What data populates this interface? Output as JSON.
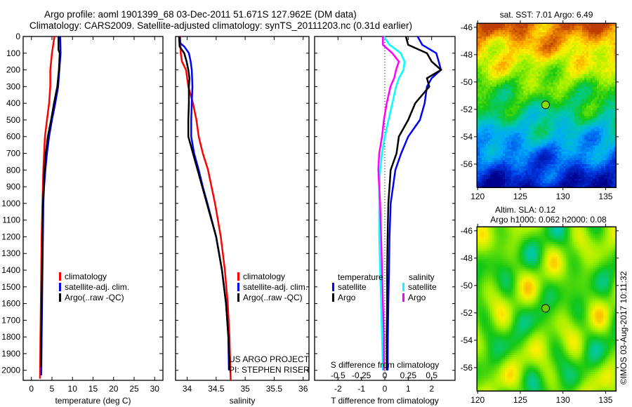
{
  "header": {
    "line1": "Argo profile: aoml 1901399_68 03-Dec-2011 51.671S 127.962E (DM data)",
    "line2": "Climatology: CARS2009. Satellite-adjusted climatology: synTS_20111203.nc (0.31d earlier)"
  },
  "colors": {
    "climatology": "#ff0000",
    "satellite": "#0000ff",
    "argo": "#000000",
    "sal_satellite": "#00ffff",
    "sal_argo": "#ff00ff"
  },
  "chart_data": [
    {
      "type": "line",
      "name": "temperature-profile",
      "xlabel": "temperature (deg C)",
      "ylabel": "",
      "xlim": [
        -2,
        32
      ],
      "ylim": [
        2060,
        0
      ],
      "xticks": [
        0,
        5,
        10,
        15,
        20,
        25,
        30
      ],
      "yticks": [
        0,
        100,
        200,
        300,
        400,
        500,
        600,
        700,
        800,
        900,
        1000,
        1100,
        1200,
        1300,
        1400,
        1500,
        1600,
        1700,
        1800,
        1900,
        2000
      ],
      "legend": [
        "climatology",
        "satellite-adj. clim.",
        "Argo(..raw -QC)"
      ],
      "series": [
        {
          "name": "climatology",
          "depth": [
            0,
            100,
            200,
            300,
            400,
            500,
            600,
            700,
            800,
            900,
            1000,
            1200,
            1400,
            1600,
            1800,
            2050
          ],
          "values": [
            5.6,
            5.0,
            4.6,
            4.6,
            4.3,
            3.8,
            3.3,
            3.1,
            2.9,
            2.8,
            2.7,
            2.5,
            2.4,
            2.3,
            2.2,
            2.1
          ]
        },
        {
          "name": "satellite-adj. clim.",
          "depth": [
            0,
            100,
            200,
            300,
            400,
            500,
            600,
            700,
            800,
            900,
            1000,
            1200,
            1400,
            1600,
            1800,
            2030
          ],
          "values": [
            7.0,
            7.1,
            6.8,
            6.5,
            5.8,
            5.0,
            4.3,
            3.8,
            3.4,
            3.1,
            2.9,
            2.8,
            2.7,
            2.6,
            2.5,
            2.4
          ]
        },
        {
          "name": "Argo(..raw -QC)",
          "depth": [
            0,
            80,
            100,
            200,
            300,
            400,
            500,
            600,
            700,
            800,
            900,
            1000,
            1200,
            1400,
            1600,
            1800,
            1980
          ],
          "values": [
            6.6,
            6.6,
            6.9,
            6.7,
            6.3,
            5.5,
            4.8,
            4.0,
            3.5,
            3.2,
            3.0,
            2.8,
            2.7,
            2.6,
            2.5,
            2.4,
            2.3
          ]
        }
      ]
    },
    {
      "type": "line",
      "name": "salinity-profile",
      "xlabel": "salinity",
      "xlim": [
        33.8,
        36.1
      ],
      "ylim": [
        2060,
        0
      ],
      "xticks": [
        34,
        34.5,
        35,
        35.5,
        36
      ],
      "legend": [
        "climatology",
        "satellite-adj. clim.",
        "Argo(..raw -QC)"
      ],
      "annotation": [
        "US ARGO PROJECT",
        "PI: STEPHEN RISER"
      ],
      "series": [
        {
          "name": "climatology",
          "depth": [
            0,
            100,
            150,
            200,
            300,
            400,
            500,
            600,
            700,
            800,
            900,
            1000,
            1200,
            1400,
            1600,
            1800,
            2060
          ],
          "values": [
            33.88,
            33.89,
            33.91,
            33.98,
            34.02,
            34.1,
            34.16,
            34.2,
            34.27,
            34.36,
            34.42,
            34.48,
            34.58,
            34.65,
            34.7,
            34.73,
            34.75
          ]
        },
        {
          "name": "satellite-adj. clim.",
          "depth": [
            0,
            40,
            60,
            100,
            150,
            200,
            300,
            400,
            500,
            600,
            700,
            800,
            900,
            1000,
            1200,
            1400,
            1600,
            1800,
            2000
          ],
          "values": [
            33.86,
            33.88,
            33.95,
            34.03,
            34.06,
            34.08,
            34.09,
            34.08,
            34.07,
            34.07,
            34.12,
            34.2,
            34.27,
            34.35,
            34.5,
            34.6,
            34.67,
            34.71,
            34.72
          ]
        },
        {
          "name": "Argo(..raw -QC)",
          "depth": [
            0,
            60,
            100,
            150,
            200,
            250,
            300,
            400,
            500,
            600,
            700,
            800,
            900,
            1000,
            1200,
            1400,
            1600,
            1800,
            2000
          ],
          "values": [
            33.86,
            33.87,
            33.95,
            33.99,
            34.02,
            34.04,
            34.03,
            34.03,
            34.02,
            34.02,
            34.1,
            34.18,
            34.26,
            34.34,
            34.5,
            34.6,
            34.67,
            34.71,
            34.73
          ]
        }
      ]
    },
    {
      "type": "line",
      "name": "difference-profile",
      "xlabel": "T difference from climatology",
      "x2label": "S difference from climatology",
      "xlim": [
        -3,
        3
      ],
      "x2lim": [
        -0.75,
        0.75
      ],
      "ylim": [
        2060,
        0
      ],
      "xticks": [
        -2,
        -1,
        0,
        1,
        2
      ],
      "x2ticks": [
        -0.5,
        -0.25,
        0,
        0.25,
        0.5
      ],
      "legend": {
        "temperature": [
          "satellite",
          "Argo"
        ],
        "salinity": [
          "satellite",
          "Argo"
        ]
      },
      "series": [
        {
          "name": "T satellite",
          "depth": [
            0,
            50,
            100,
            150,
            200,
            250,
            300,
            400,
            500,
            600,
            700,
            800,
            900,
            1000,
            1200,
            1400,
            1600,
            1800,
            2000
          ],
          "values": [
            1.4,
            1.6,
            2.2,
            2.3,
            2.4,
            2.0,
            1.8,
            1.7,
            1.5,
            1.0,
            0.7,
            0.45,
            0.35,
            0.25,
            0.2,
            0.18,
            0.15,
            0.13,
            0.12
          ]
        },
        {
          "name": "T Argo",
          "depth": [
            0,
            50,
            100,
            150,
            200,
            250,
            300,
            400,
            500,
            600,
            700,
            800,
            900,
            1000,
            1200,
            1400,
            1600,
            1800,
            2000
          ],
          "values": [
            0.9,
            1.0,
            1.8,
            2.0,
            2.4,
            1.8,
            1.9,
            1.3,
            1.0,
            0.6,
            0.5,
            0.25,
            0.2,
            0.15,
            0.12,
            0.1,
            0.1,
            0.08,
            0.08
          ]
        },
        {
          "name": "S satellite",
          "depth": [
            0,
            50,
            100,
            150,
            200,
            250,
            300,
            400,
            500,
            600,
            700,
            800,
            900,
            1000,
            1200,
            1400,
            1600,
            1800,
            2000
          ],
          "values": [
            -0.01,
            0.05,
            0.17,
            0.21,
            0.2,
            0.15,
            0.12,
            0.08,
            0.04,
            0.0,
            -0.03,
            -0.05,
            -0.06,
            -0.06,
            -0.06,
            -0.05,
            -0.04,
            -0.03,
            -0.02
          ]
        },
        {
          "name": "S Argo",
          "depth": [
            0,
            50,
            100,
            150,
            200,
            250,
            300,
            400,
            500,
            600,
            700,
            800,
            900,
            1000,
            1200,
            1400,
            1600,
            1800,
            2000
          ],
          "values": [
            -0.02,
            -0.02,
            0.08,
            0.15,
            0.12,
            0.1,
            0.06,
            0.02,
            -0.01,
            -0.03,
            -0.06,
            -0.07,
            -0.06,
            -0.05,
            -0.04,
            -0.03,
            -0.02,
            -0.01,
            -0.01
          ]
        }
      ]
    },
    {
      "type": "heatmap",
      "name": "sst-map",
      "title": "sat. SST: 7.01 Argo: 6.49",
      "xlim": [
        119.9,
        136.2
      ],
      "ylim": [
        -57.7,
        -45.7
      ],
      "xticks": [
        120,
        125,
        130,
        135
      ],
      "yticks": [
        -46,
        -48,
        -50,
        -52,
        -54,
        -56
      ],
      "marker": {
        "lon": 127.962,
        "lat": -51.671
      }
    },
    {
      "type": "heatmap",
      "name": "sla-map",
      "title": "Altim. SLA: 0.12",
      "subtitle": "Argo h1000: 0.062 h2000: 0.08",
      "xlim": [
        119.9,
        136.2
      ],
      "ylim": [
        -57.7,
        -45.7
      ],
      "xticks": [
        120,
        125,
        130,
        135
      ],
      "yticks": [
        -46,
        -48,
        -50,
        -52,
        -54,
        -56
      ],
      "marker": {
        "lon": 127.962,
        "lat": -51.671
      }
    }
  ],
  "footer": {
    "credit": "©IMOS 03-Aug-2017 10:11:32"
  }
}
